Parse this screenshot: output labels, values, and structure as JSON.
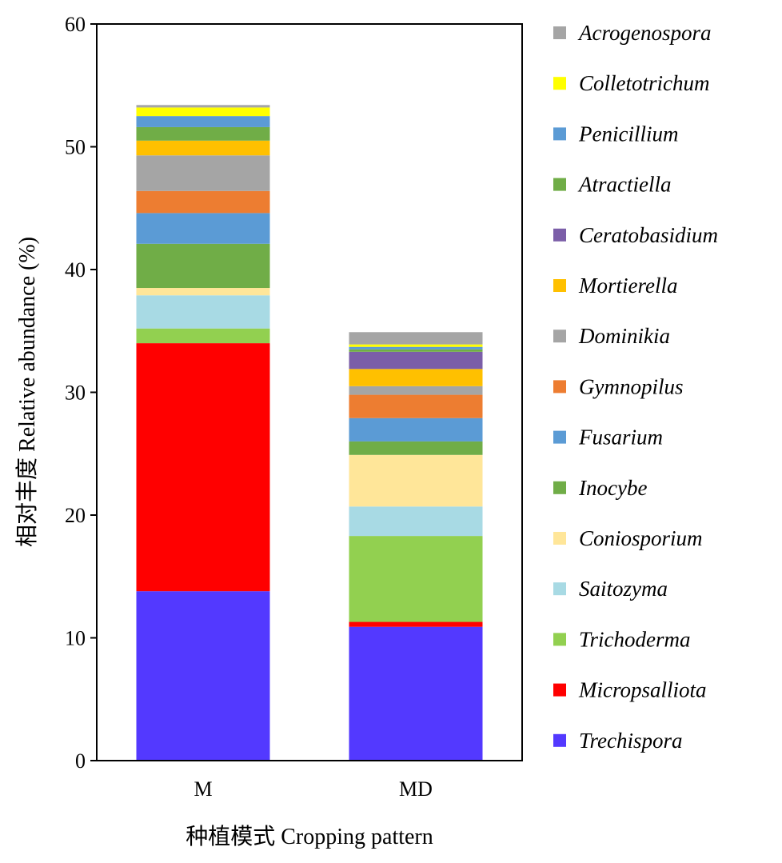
{
  "chart_data": {
    "type": "bar",
    "stacked": true,
    "categories": [
      "M",
      "MD"
    ],
    "xlabel": "种植模式 Cropping pattern",
    "ylabel": "相对丰度 Relative abundance (%)",
    "ylim": [
      0,
      60
    ],
    "yticks": [
      "0",
      "10",
      "20",
      "30",
      "40",
      "50",
      "60"
    ],
    "legend_position": "right",
    "series": [
      {
        "name": "Trechispora",
        "color": "#5339FF",
        "values": [
          13.8,
          10.9
        ]
      },
      {
        "name": "Micropsalliota",
        "color": "#FF0000",
        "values": [
          20.2,
          0.4
        ]
      },
      {
        "name": "Trichoderma",
        "color": "#92D050",
        "values": [
          1.2,
          7.0
        ]
      },
      {
        "name": "Saitozyma",
        "color": "#A8DAE4",
        "values": [
          2.7,
          2.4
        ]
      },
      {
        "name": "Coniosporium",
        "color": "#FFE699",
        "values": [
          0.6,
          4.2
        ]
      },
      {
        "name": "Inocybe",
        "color": "#70AD47",
        "values": [
          3.6,
          1.1
        ]
      },
      {
        "name": "Fusarium",
        "color": "#5B9BD5",
        "values": [
          2.5,
          1.9
        ]
      },
      {
        "name": "Gymnopilus",
        "color": "#ED7D31",
        "values": [
          1.8,
          1.9
        ]
      },
      {
        "name": "Dominikia",
        "color": "#A5A5A5",
        "values": [
          2.9,
          0.7
        ]
      },
      {
        "name": "Mortierella",
        "color": "#FFC000",
        "values": [
          1.2,
          1.4
        ]
      },
      {
        "name": "Ceratobasidium",
        "color": "#7B5EA8",
        "values": [
          0.0,
          1.4
        ]
      },
      {
        "name": "Atractiella",
        "color": "#70AD47",
        "values": [
          1.1,
          0.2
        ]
      },
      {
        "name": "Penicillium",
        "color": "#5B9BD5",
        "values": [
          0.9,
          0.2
        ]
      },
      {
        "name": "Colletotrichum",
        "color": "#FFFF00",
        "values": [
          0.7,
          0.2
        ]
      },
      {
        "name": "Acrogenospora",
        "color": "#A5A5A5",
        "values": [
          0.2,
          1.0
        ]
      }
    ]
  }
}
